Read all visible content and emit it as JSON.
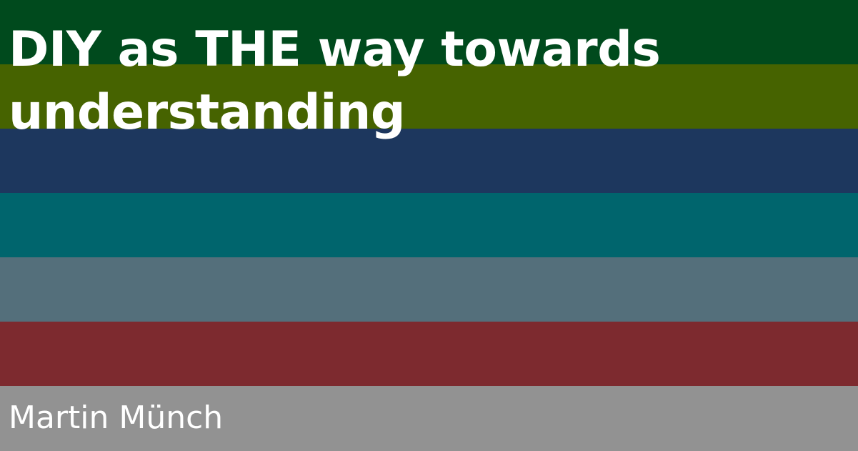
{
  "title": "DIY as THE way towards understanding",
  "author": "Martin Münch",
  "stripes": [
    "#004a1d",
    "#466300",
    "#1d375e",
    "#00656d",
    "#546f7b",
    "#7d2a2f",
    "#929292"
  ]
}
